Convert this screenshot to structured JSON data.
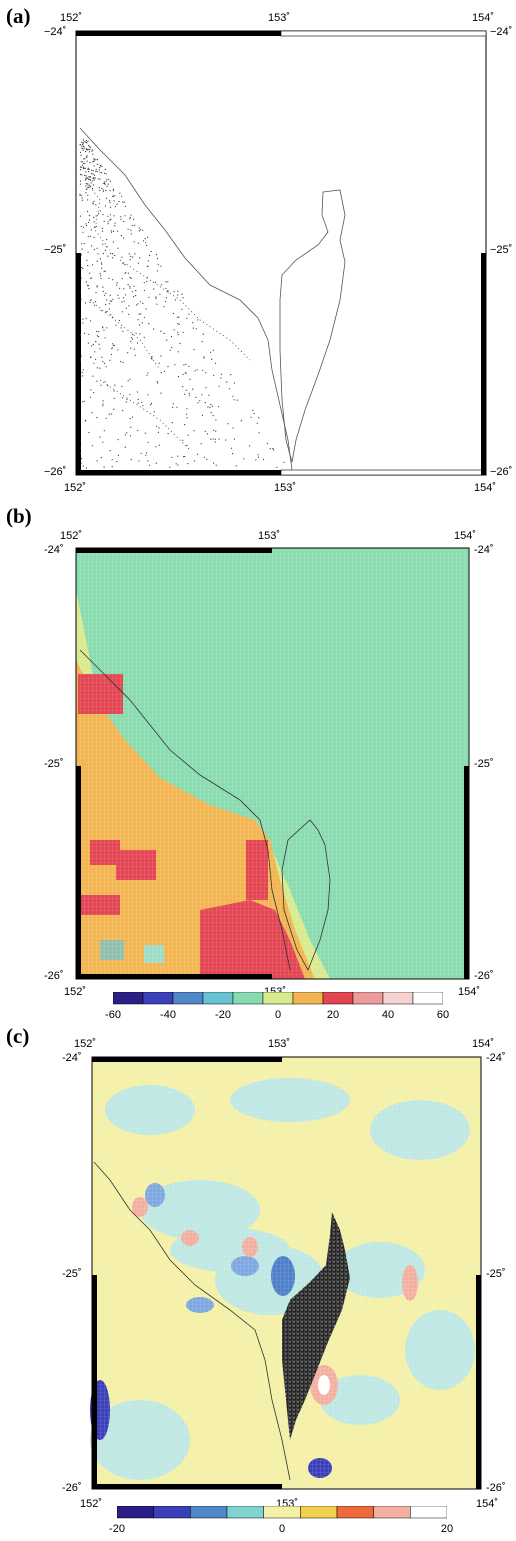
{
  "panels": [
    {
      "label": "(a)",
      "x_ticks": [
        "152˚",
        "153˚",
        "154˚"
      ],
      "y_ticks": [
        "−24˚",
        "−25˚",
        "−26˚"
      ]
    },
    {
      "label": "(b)",
      "x_ticks": [
        "152˚",
        "153˚",
        "154˚"
      ],
      "y_ticks": [
        "-24˚",
        "-25˚",
        "-26˚"
      ],
      "colorbar": {
        "labels": [
          "-60",
          "-40",
          "-20",
          "0",
          "20",
          "40",
          "60"
        ],
        "colors": [
          "#2b1f86",
          "#3b3fb8",
          "#4f87c8",
          "#67c3d4",
          "#86dcb0",
          "#d8ea8e",
          "#f2b552",
          "#e34552",
          "#ef9a9a",
          "#f7d2d2",
          "#ffffff"
        ]
      }
    },
    {
      "label": "(c)",
      "x_ticks": [
        "152˚",
        "153˚",
        "154˚"
      ],
      "y_ticks": [
        "-24˚",
        "-25˚",
        "-26˚"
      ],
      "colorbar": {
        "labels": [
          "-20",
          "0",
          "20"
        ],
        "colors": [
          "#2b1f86",
          "#3b3fb8",
          "#4f87c8",
          "#7fd3d0",
          "#f4f0a8",
          "#f4d050",
          "#ee6a3a",
          "#f3b0a0",
          "#ffffff"
        ]
      }
    }
  ],
  "colors": {
    "ocean_b": "#8adcb0",
    "near_b": "#d8ea8e",
    "land_b": "#f2b552",
    "high_b": "#e34552",
    "ocean_c": "#f4f0a8",
    "cool_c": "#bfe7e3",
    "blue_c": "#7fa8e0",
    "island_c": "#222222"
  }
}
